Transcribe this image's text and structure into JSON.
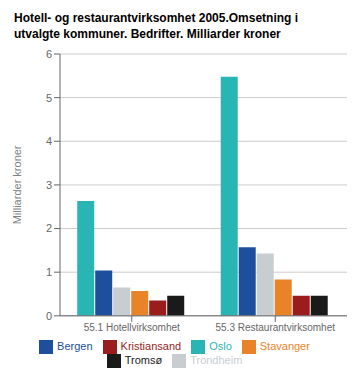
{
  "chart_data": {
    "type": "bar",
    "title": "Hotell- og restaurantvirksomhet 2005.Omsetning i\nutvalgte kommuner. Bedrifter. Milliarder kroner",
    "ylabel": "Milliarder kroner",
    "categories": [
      "55.1 Hotellvirksomhet",
      "55.3 Restaurantvirksomhet"
    ],
    "series": [
      {
        "name": "Oslo",
        "color": "#2ab5b5",
        "values": [
          2.63,
          5.48
        ]
      },
      {
        "name": "Bergen",
        "color": "#1e4f9c",
        "values": [
          1.04,
          1.57
        ]
      },
      {
        "name": "Trondheim",
        "color": "#c8cdd2",
        "values": [
          0.65,
          1.43
        ]
      },
      {
        "name": "Stavanger",
        "color": "#e8832a",
        "values": [
          0.57,
          0.83
        ]
      },
      {
        "name": "Kristiansand",
        "color": "#9b1c1c",
        "values": [
          0.35,
          0.46
        ]
      },
      {
        "name": "Tromsø",
        "color": "#1a1a1a",
        "values": [
          0.46,
          0.46
        ]
      }
    ],
    "ylim": [
      0,
      6
    ],
    "yticks": [
      0,
      1,
      2,
      3,
      4,
      5,
      6
    ],
    "grid": true,
    "legend": "bottom"
  }
}
